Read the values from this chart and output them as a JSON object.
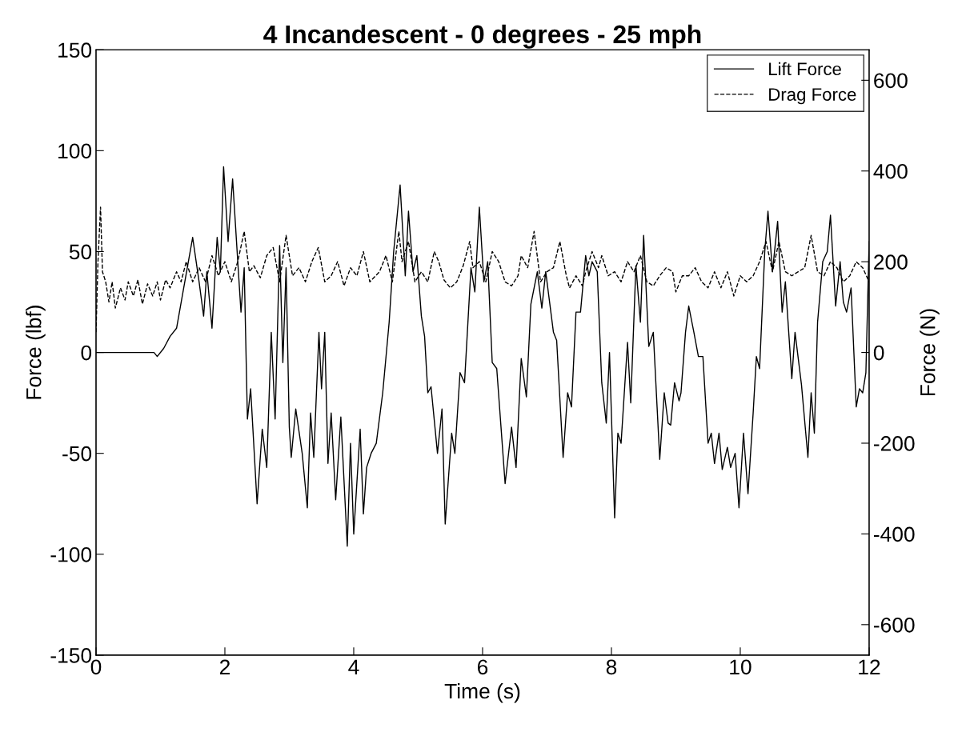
{
  "chart_data": {
    "type": "line",
    "title": "4 Incandescent - 0 degrees - 25 mph",
    "xlabel": "Time (s)",
    "ylabel": "Force (lbf)",
    "y2label": "Force (N)",
    "xlim": [
      0,
      12
    ],
    "xticks": [
      0,
      2,
      4,
      6,
      8,
      10,
      12
    ],
    "ylim": [
      -150,
      150
    ],
    "yticks": [
      -150,
      -100,
      -50,
      0,
      50,
      100,
      150
    ],
    "y2lim": [
      -667.2,
      667.2
    ],
    "y2ticks": [
      -600,
      -400,
      -200,
      0,
      200,
      400,
      600
    ],
    "grid": false,
    "legend": "top right",
    "marker": "none",
    "series": [
      {
        "name": "Lift Force",
        "color": "#000000",
        "line_style": "solid",
        "x": [
          0,
          0.9,
          0.95,
          1.05,
          1.15,
          1.25,
          1.35,
          1.5,
          1.6,
          1.67,
          1.72,
          1.8,
          1.88,
          1.93,
          1.98,
          2.05,
          2.12,
          2.2,
          2.25,
          2.3,
          2.35,
          2.4,
          2.5,
          2.58,
          2.65,
          2.72,
          2.78,
          2.85,
          2.9,
          2.95,
          3.0,
          3.03,
          3.1,
          3.2,
          3.28,
          3.33,
          3.38,
          3.46,
          3.5,
          3.55,
          3.6,
          3.65,
          3.72,
          3.8,
          3.9,
          3.95,
          4.0,
          4.1,
          4.15,
          4.2,
          4.27,
          4.35,
          4.45,
          4.55,
          4.62,
          4.72,
          4.8,
          4.85,
          4.92,
          4.98,
          5.05,
          5.1,
          5.15,
          5.2,
          5.3,
          5.37,
          5.42,
          5.52,
          5.57,
          5.65,
          5.72,
          5.82,
          5.88,
          5.95,
          6.02,
          6.08,
          6.15,
          6.22,
          6.35,
          6.45,
          6.52,
          6.6,
          6.68,
          6.75,
          6.85,
          6.92,
          6.98,
          7.1,
          7.15,
          7.25,
          7.32,
          7.38,
          7.45,
          7.52,
          7.6,
          7.65,
          7.7,
          7.78,
          7.85,
          7.92,
          7.97,
          8.05,
          8.1,
          8.15,
          8.25,
          8.3,
          8.38,
          8.45,
          8.5,
          8.58,
          8.65,
          8.75,
          8.82,
          8.88,
          8.92,
          8.98,
          9.05,
          9.08,
          9.15,
          9.2,
          9.28,
          9.35,
          9.42,
          9.5,
          9.55,
          9.6,
          9.67,
          9.72,
          9.8,
          9.85,
          9.92,
          9.98,
          10.05,
          10.12,
          10.2,
          10.25,
          10.3,
          10.38,
          10.43,
          10.5,
          10.58,
          10.65,
          10.7,
          10.8,
          10.85,
          10.95,
          11.05,
          11.1,
          11.15,
          11.2,
          11.28,
          11.35,
          11.4,
          11.48,
          11.55,
          11.6,
          11.65,
          11.72,
          11.8,
          11.85,
          11.9,
          11.95,
          12.0
        ],
        "values": [
          0,
          0,
          -2,
          2,
          8,
          12,
          30,
          57,
          35,
          18,
          40,
          12,
          57,
          40,
          92,
          55,
          86,
          45,
          20,
          42,
          -33,
          -18,
          -75,
          -38,
          -57,
          10,
          -33,
          53,
          -5,
          42,
          -37,
          -52,
          -28,
          -50,
          -77,
          -30,
          -52,
          10,
          -18,
          10,
          -55,
          -30,
          -73,
          -32,
          -96,
          -45,
          -90,
          -38,
          -80,
          -57,
          -50,
          -45,
          -20,
          15,
          50,
          83,
          38,
          70,
          40,
          48,
          18,
          8,
          -20,
          -17,
          -50,
          -28,
          -85,
          -40,
          -50,
          -10,
          -15,
          42,
          30,
          72,
          35,
          45,
          -5,
          -8,
          -65,
          -37,
          -57,
          -3,
          -22,
          24,
          40,
          22,
          40,
          10,
          6,
          -52,
          -20,
          -27,
          20,
          20,
          48,
          38,
          45,
          40,
          -15,
          -35,
          0,
          -82,
          -40,
          -45,
          5,
          -25,
          43,
          15,
          58,
          3,
          10,
          -53,
          -20,
          -35,
          -36,
          -15,
          -24,
          -20,
          10,
          23,
          10,
          -2,
          -2,
          -45,
          -40,
          -55,
          -40,
          -58,
          -47,
          -57,
          -50,
          -77,
          -40,
          -70,
          -30,
          -2,
          -8,
          50,
          70,
          40,
          65,
          20,
          35,
          -13,
          10,
          -16,
          -52,
          -20,
          -40,
          15,
          45,
          50,
          68,
          23,
          45,
          25,
          20,
          32,
          -27,
          -18,
          -20,
          -10,
          55
        ]
      },
      {
        "name": "Drag Force",
        "color": "#000000",
        "line_style": "dashed",
        "x": [
          0,
          0.03,
          0.07,
          0.1,
          0.15,
          0.2,
          0.25,
          0.3,
          0.38,
          0.45,
          0.5,
          0.58,
          0.65,
          0.72,
          0.8,
          0.88,
          0.95,
          1.0,
          1.08,
          1.15,
          1.25,
          1.32,
          1.4,
          1.5,
          1.6,
          1.7,
          1.8,
          1.9,
          2.0,
          2.1,
          2.2,
          2.3,
          2.38,
          2.45,
          2.55,
          2.65,
          2.75,
          2.85,
          2.95,
          3.05,
          3.15,
          3.25,
          3.35,
          3.45,
          3.55,
          3.65,
          3.75,
          3.85,
          3.95,
          4.05,
          4.15,
          4.25,
          4.4,
          4.5,
          4.6,
          4.7,
          4.75,
          4.85,
          4.95,
          5.05,
          5.15,
          5.25,
          5.32,
          5.4,
          5.5,
          5.6,
          5.7,
          5.8,
          5.85,
          5.95,
          6.05,
          6.15,
          6.25,
          6.35,
          6.45,
          6.55,
          6.6,
          6.7,
          6.8,
          6.9,
          7.0,
          7.1,
          7.2,
          7.3,
          7.35,
          7.45,
          7.55,
          7.6,
          7.7,
          7.8,
          7.85,
          7.95,
          8.05,
          8.15,
          8.25,
          8.35,
          8.45,
          8.55,
          8.65,
          8.75,
          8.85,
          8.95,
          9.0,
          9.1,
          9.2,
          9.3,
          9.4,
          9.5,
          9.6,
          9.7,
          9.8,
          9.9,
          10.0,
          10.1,
          10.2,
          10.3,
          10.4,
          10.5,
          10.6,
          10.7,
          10.8,
          10.9,
          11.0,
          11.1,
          11.2,
          11.3,
          11.4,
          11.5,
          11.6,
          11.7,
          11.8,
          11.9,
          12.0
        ],
        "values": [
          10,
          45,
          72,
          40,
          35,
          25,
          35,
          22,
          32,
          26,
          35,
          28,
          36,
          24,
          34,
          28,
          35,
          26,
          36,
          32,
          40,
          35,
          45,
          35,
          42,
          35,
          48,
          38,
          45,
          35,
          45,
          60,
          40,
          43,
          37,
          48,
          52,
          35,
          58,
          38,
          42,
          35,
          45,
          52,
          35,
          38,
          45,
          33,
          42,
          38,
          50,
          35,
          40,
          48,
          35,
          60,
          45,
          55,
          35,
          40,
          35,
          50,
          45,
          36,
          32,
          35,
          43,
          55,
          42,
          45,
          35,
          50,
          45,
          35,
          33,
          38,
          48,
          42,
          60,
          35,
          40,
          42,
          55,
          38,
          32,
          38,
          33,
          40,
          50,
          42,
          48,
          38,
          40,
          35,
          45,
          40,
          48,
          35,
          33,
          38,
          42,
          40,
          30,
          38,
          38,
          42,
          35,
          32,
          40,
          32,
          40,
          28,
          38,
          35,
          38,
          45,
          55,
          40,
          55,
          40,
          38,
          40,
          42,
          58,
          40,
          38,
          45,
          42,
          35,
          38,
          45,
          42,
          35
        ]
      }
    ]
  }
}
